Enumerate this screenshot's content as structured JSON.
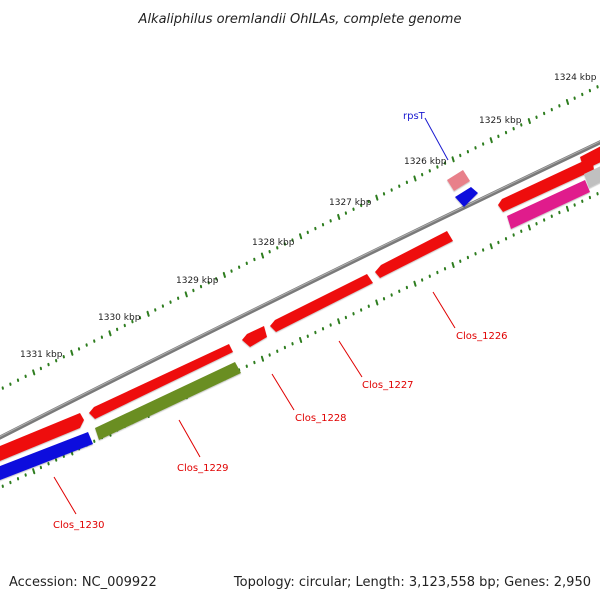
{
  "title": "Alkaliphilus oremlandii OhILAs, complete genome",
  "accession": "Accession: NC_009922",
  "topology": "Topology: circular; Length: 3,123,558 bp; Genes: 2,950",
  "colors": {
    "backbone": "#7a7a7a",
    "tick": "#2e7d1f",
    "label_red": "#e00000",
    "label_blue": "#1a1ad0",
    "gene_red": "#ee1111",
    "gene_pink": "#e8808a",
    "gene_blue": "#1111dd",
    "gene_olive": "#6b8e23",
    "gene_magenta": "#e01c8c",
    "gene_gray": "#c0c0c0"
  },
  "kbp_labels": [
    "1324 kbp",
    "1325 kbp",
    "1326 kbp",
    "1327 kbp",
    "1328 kbp",
    "1329 kbp",
    "1330 kbp",
    "1331 kbp"
  ],
  "genes": [
    {
      "name": "rpsT",
      "color": "blue-label"
    },
    {
      "name": "Clos_1226",
      "color": "red-label"
    },
    {
      "name": "Clos_1227",
      "color": "red-label"
    },
    {
      "name": "Clos_1228",
      "color": "red-label"
    },
    {
      "name": "Clos_1229",
      "color": "red-label"
    },
    {
      "name": "Clos_1230",
      "color": "red-label"
    }
  ]
}
